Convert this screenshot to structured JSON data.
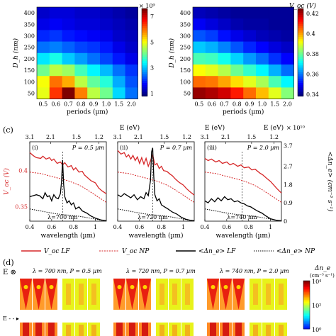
{
  "colors": {
    "red": "#d62728",
    "black": "#000000",
    "green": "#3cb371",
    "jet": [
      "#00007f",
      "#0000ff",
      "#007fff",
      "#00ffff",
      "#7fff7f",
      "#ffff00",
      "#ff7f00",
      "#ff0000",
      "#7f0000"
    ]
  },
  "chart_data": [
    {
      "type": "heatmap",
      "panel": "a",
      "rows": [
        "400",
        "350",
        "300",
        "250",
        "200",
        "150",
        "100",
        "50"
      ],
      "cols": [
        "0.5",
        "0.6",
        "0.7",
        "0.8",
        "0.9",
        "1.0",
        "1.5",
        "2.0"
      ],
      "ylabel": "D_h (nm)",
      "xlabel": "periods (µm)",
      "colorbar": {
        "multiplier": "× 10⁹",
        "ticks": [
          "7",
          "5",
          "3",
          "1"
        ],
        "range": [
          0.8,
          7.6
        ]
      },
      "values": [
        [
          1.3,
          1.4,
          1.4,
          1.3,
          1.3,
          1.2,
          1.1,
          1.0
        ],
        [
          1.5,
          1.6,
          1.5,
          1.4,
          1.4,
          1.3,
          1.2,
          1.1
        ],
        [
          1.9,
          2.0,
          1.8,
          1.7,
          1.6,
          1.5,
          1.3,
          1.2
        ],
        [
          2.4,
          2.5,
          2.3,
          2.1,
          2.0,
          1.8,
          1.5,
          1.3
        ],
        [
          3.2,
          3.5,
          3.0,
          2.7,
          2.4,
          2.1,
          1.8,
          1.5
        ],
        [
          4.1,
          4.6,
          4.4,
          3.8,
          3.3,
          2.9,
          2.4,
          2.0
        ],
        [
          5.0,
          6.0,
          5.6,
          4.6,
          4.0,
          3.6,
          2.8,
          2.2
        ],
        [
          4.9,
          6.4,
          7.6,
          5.9,
          4.6,
          4.1,
          3.1,
          2.4
        ]
      ]
    },
    {
      "type": "heatmap",
      "panel": "b",
      "rows": [
        "400",
        "350",
        "300",
        "250",
        "200",
        "150",
        "100",
        "50"
      ],
      "cols": [
        "0.5",
        "0.6",
        "0.7",
        "0.8",
        "0.9",
        "1.0",
        "1.5",
        "2.0"
      ],
      "ylabel": "D_h (nm)",
      "xlabel": "periods (µm)",
      "colorbar": {
        "title": "V_oc (V)",
        "ticks": [
          "0.42",
          "0.4",
          "0.38",
          "0.36",
          "0.34"
        ],
        "range": [
          0.338,
          0.425
        ]
      },
      "values": [
        [
          0.343,
          0.342,
          0.341,
          0.34,
          0.34,
          0.34,
          0.34,
          0.34
        ],
        [
          0.348,
          0.346,
          0.344,
          0.342,
          0.341,
          0.341,
          0.34,
          0.34
        ],
        [
          0.356,
          0.354,
          0.35,
          0.347,
          0.345,
          0.343,
          0.342,
          0.341
        ],
        [
          0.366,
          0.364,
          0.36,
          0.356,
          0.352,
          0.349,
          0.346,
          0.344
        ],
        [
          0.377,
          0.376,
          0.372,
          0.367,
          0.362,
          0.358,
          0.353,
          0.349
        ],
        [
          0.392,
          0.39,
          0.386,
          0.38,
          0.375,
          0.37,
          0.364,
          0.358
        ],
        [
          0.405,
          0.404,
          0.4,
          0.395,
          0.39,
          0.385,
          0.377,
          0.37
        ],
        [
          0.423,
          0.421,
          0.418,
          0.412,
          0.405,
          0.398,
          0.39,
          0.382
        ]
      ]
    },
    {
      "type": "line",
      "panel": "i",
      "roman": "(i)",
      "period": "P = 0.5 µm",
      "lambda": "λ=700 nm",
      "xrange": [
        0.4,
        1.1
      ],
      "vline": 0.7,
      "series": [
        {
          "name": "V_oc LF",
          "x": [
            0.4,
            0.43,
            0.46,
            0.5,
            0.52,
            0.55,
            0.58,
            0.6,
            0.62,
            0.65,
            0.68,
            0.7,
            0.72,
            0.75,
            0.78,
            0.8,
            0.82,
            0.85,
            0.88,
            0.9,
            0.93,
            0.96,
            1.0,
            1.03,
            1.06,
            1.1
          ],
          "y": [
            0.425,
            0.421,
            0.418,
            0.417,
            0.42,
            0.416,
            0.418,
            0.414,
            0.416,
            0.41,
            0.412,
            0.408,
            0.411,
            0.405,
            0.407,
            0.401,
            0.404,
            0.398,
            0.399,
            0.394,
            0.39,
            0.386,
            0.383,
            0.376,
            0.372,
            0.368
          ]
        },
        {
          "name": "V_oc NP",
          "x": [
            0.4,
            0.45,
            0.5,
            0.55,
            0.6,
            0.65,
            0.7,
            0.75,
            0.8,
            0.85,
            0.9,
            0.95,
            1.0,
            1.05,
            1.1
          ],
          "y": [
            0.398,
            0.397,
            0.396,
            0.394,
            0.392,
            0.39,
            0.388,
            0.386,
            0.383,
            0.38,
            0.376,
            0.371,
            0.366,
            0.361,
            0.356
          ]
        },
        {
          "name": "<Δn_e> LF",
          "x": [
            0.4,
            0.43,
            0.46,
            0.49,
            0.52,
            0.54,
            0.56,
            0.58,
            0.6,
            0.62,
            0.64,
            0.66,
            0.68,
            0.69,
            0.7,
            0.71,
            0.72,
            0.74,
            0.76,
            0.78,
            0.8,
            0.82,
            0.85,
            0.88,
            0.92,
            0.96,
            1.0,
            1.05,
            1.1
          ],
          "y": [
            1.2,
            1.25,
            1.3,
            1.25,
            1.1,
            1.4,
            1.2,
            1.25,
            1.0,
            1.3,
            1.15,
            1.1,
            1.35,
            1.9,
            3.0,
            1.8,
            1.2,
            0.9,
            1.0,
            0.8,
            0.9,
            0.6,
            0.7,
            0.5,
            0.4,
            0.25,
            0.15,
            0.06,
            0.02
          ]
        },
        {
          "name": "<Δn_e> NP",
          "x": [
            0.4,
            0.45,
            0.5,
            0.55,
            0.6,
            0.65,
            0.7,
            0.75,
            0.8,
            0.85,
            0.9,
            0.95,
            1.0,
            1.05,
            1.1
          ],
          "y": [
            0.6,
            0.55,
            0.5,
            0.45,
            0.4,
            0.36,
            0.32,
            0.3,
            0.27,
            0.24,
            0.2,
            0.15,
            0.1,
            0.05,
            0.02
          ]
        }
      ]
    },
    {
      "type": "line",
      "panel": "ii",
      "roman": "(ii)",
      "period": "P = 0.7 µm",
      "lambda": "λ=720 nm",
      "xrange": [
        0.4,
        1.1
      ],
      "vline": 0.72,
      "series": [
        {
          "name": "V_oc LF",
          "x": [
            0.4,
            0.43,
            0.46,
            0.48,
            0.5,
            0.52,
            0.54,
            0.56,
            0.58,
            0.6,
            0.62,
            0.64,
            0.66,
            0.68,
            0.7,
            0.72,
            0.74,
            0.76,
            0.78,
            0.8,
            0.82,
            0.85,
            0.88,
            0.9,
            0.93,
            0.96,
            1.0,
            1.03,
            1.06,
            1.1
          ],
          "y": [
            0.428,
            0.423,
            0.425,
            0.419,
            0.422,
            0.416,
            0.421,
            0.414,
            0.419,
            0.41,
            0.418,
            0.409,
            0.417,
            0.406,
            0.414,
            0.422,
            0.408,
            0.41,
            0.403,
            0.406,
            0.4,
            0.399,
            0.395,
            0.393,
            0.388,
            0.384,
            0.38,
            0.375,
            0.371,
            0.366
          ]
        },
        {
          "name": "V_oc NP",
          "x": [
            0.4,
            0.45,
            0.5,
            0.55,
            0.6,
            0.65,
            0.7,
            0.75,
            0.8,
            0.85,
            0.9,
            0.95,
            1.0,
            1.05,
            1.1
          ],
          "y": [
            0.398,
            0.397,
            0.396,
            0.394,
            0.392,
            0.39,
            0.388,
            0.386,
            0.383,
            0.38,
            0.376,
            0.371,
            0.366,
            0.361,
            0.356
          ]
        },
        {
          "name": "<Δn_e> LF",
          "x": [
            0.4,
            0.43,
            0.46,
            0.49,
            0.52,
            0.55,
            0.58,
            0.61,
            0.64,
            0.66,
            0.68,
            0.7,
            0.71,
            0.72,
            0.73,
            0.74,
            0.76,
            0.78,
            0.8,
            0.83,
            0.86,
            0.9,
            0.94,
            0.98,
            1.02,
            1.06,
            1.1
          ],
          "y": [
            1.3,
            1.2,
            1.35,
            1.25,
            1.15,
            1.3,
            1.05,
            1.2,
            1.1,
            1.4,
            1.25,
            2.0,
            3.4,
            3.6,
            2.2,
            1.3,
            1.0,
            1.1,
            0.8,
            0.7,
            0.6,
            0.45,
            0.35,
            0.2,
            0.1,
            0.05,
            0.02
          ]
        },
        {
          "name": "<Δn_e> NP",
          "x": [
            0.4,
            0.45,
            0.5,
            0.55,
            0.6,
            0.65,
            0.7,
            0.75,
            0.8,
            0.85,
            0.9,
            0.95,
            1.0,
            1.05,
            1.1
          ],
          "y": [
            0.6,
            0.55,
            0.5,
            0.45,
            0.4,
            0.36,
            0.32,
            0.3,
            0.27,
            0.24,
            0.2,
            0.15,
            0.1,
            0.05,
            0.02
          ]
        }
      ]
    },
    {
      "type": "line",
      "panel": "iii",
      "roman": "(iii)",
      "period": "P = 2.0 µm",
      "lambda": "λ=740 nm",
      "xrange": [
        0.4,
        1.1
      ],
      "vline": 0.74,
      "series": [
        {
          "name": "V_oc LF",
          "x": [
            0.4,
            0.43,
            0.46,
            0.5,
            0.53,
            0.56,
            0.6,
            0.63,
            0.66,
            0.7,
            0.73,
            0.76,
            0.8,
            0.83,
            0.86,
            0.9,
            0.93,
            0.96,
            1.0,
            1.03,
            1.06,
            1.1
          ],
          "y": [
            0.417,
            0.414,
            0.416,
            0.412,
            0.414,
            0.41,
            0.412,
            0.408,
            0.41,
            0.406,
            0.408,
            0.404,
            0.405,
            0.401,
            0.402,
            0.397,
            0.394,
            0.39,
            0.385,
            0.38,
            0.375,
            0.369
          ]
        },
        {
          "name": "V_oc NP",
          "x": [
            0.4,
            0.45,
            0.5,
            0.55,
            0.6,
            0.65,
            0.7,
            0.75,
            0.8,
            0.85,
            0.9,
            0.95,
            1.0,
            1.05,
            1.1
          ],
          "y": [
            0.398,
            0.397,
            0.396,
            0.394,
            0.392,
            0.39,
            0.388,
            0.386,
            0.383,
            0.38,
            0.376,
            0.371,
            0.366,
            0.361,
            0.356
          ]
        },
        {
          "name": "<Δn_e> LF",
          "x": [
            0.4,
            0.43,
            0.46,
            0.49,
            0.52,
            0.55,
            0.58,
            0.61,
            0.64,
            0.67,
            0.7,
            0.73,
            0.76,
            0.79,
            0.82,
            0.85,
            0.88,
            0.92,
            0.96,
            1.0,
            1.05,
            1.1
          ],
          "y": [
            1.0,
            0.9,
            1.1,
            0.95,
            1.15,
            1.0,
            1.2,
            1.05,
            1.1,
            0.95,
            1.0,
            0.9,
            0.85,
            0.75,
            0.7,
            0.6,
            0.5,
            0.4,
            0.25,
            0.12,
            0.05,
            0.02
          ]
        },
        {
          "name": "<Δn_e> NP",
          "x": [
            0.4,
            0.45,
            0.5,
            0.55,
            0.6,
            0.65,
            0.7,
            0.75,
            0.8,
            0.85,
            0.9,
            0.95,
            1.0,
            1.05,
            1.1
          ],
          "y": [
            0.6,
            0.55,
            0.5,
            0.45,
            0.4,
            0.36,
            0.32,
            0.3,
            0.27,
            0.24,
            0.2,
            0.15,
            0.1,
            0.05,
            0.02
          ]
        }
      ]
    }
  ],
  "panel_c": {
    "label": "(c)",
    "e_title": "E (eV)",
    "e_ticks": [
      "3.1",
      "2.1",
      "1.5",
      "1.2"
    ],
    "e_ticks_wl": [
      0.4,
      0.59,
      0.827,
      1.033
    ],
    "x_ticks": [
      "0.4",
      "0.6",
      "0.8",
      "1"
    ],
    "x_ticks_val": [
      0.4,
      0.6,
      0.8,
      1.0
    ],
    "xlabel": "wavelength (µm)",
    "left_ylabel": "V_oc (V)",
    "left_ticks": [
      "0.4",
      "0.35"
    ],
    "left_ticks_val": [
      0.4,
      0.35
    ],
    "left_range": [
      0.33,
      0.44
    ],
    "right_ylabel": "<Δn_e> (cm⁻³ s⁻¹)",
    "right_multiplier": "× 10¹⁰",
    "right_ticks": [
      "3.7",
      "2.7",
      "1.8",
      "0.9",
      "0"
    ],
    "right_ticks_val": [
      3.7,
      2.7,
      1.8,
      0.9,
      0
    ],
    "right_range": [
      0,
      3.9
    ]
  },
  "legend": {
    "items": [
      "V_oc LF",
      "V_oc NP",
      "<Δn_e> LF",
      "<Δn_e> NP"
    ]
  },
  "panel_d": {
    "label": "(d)",
    "e_symbol": "E ⊗",
    "e_arrow": "E - - ▸",
    "groups": [
      "λ = 700 nm, P = 0.5 µm",
      "λ = 720 nm, P = 0.7 µm",
      "λ = 740 nm, P = 2.0 µm"
    ],
    "scale_title": "Δn_e",
    "scale_units": "(cm⁻³ s⁻¹)",
    "scale_ticks": [
      "10⁴",
      "10²",
      "10⁰"
    ]
  }
}
